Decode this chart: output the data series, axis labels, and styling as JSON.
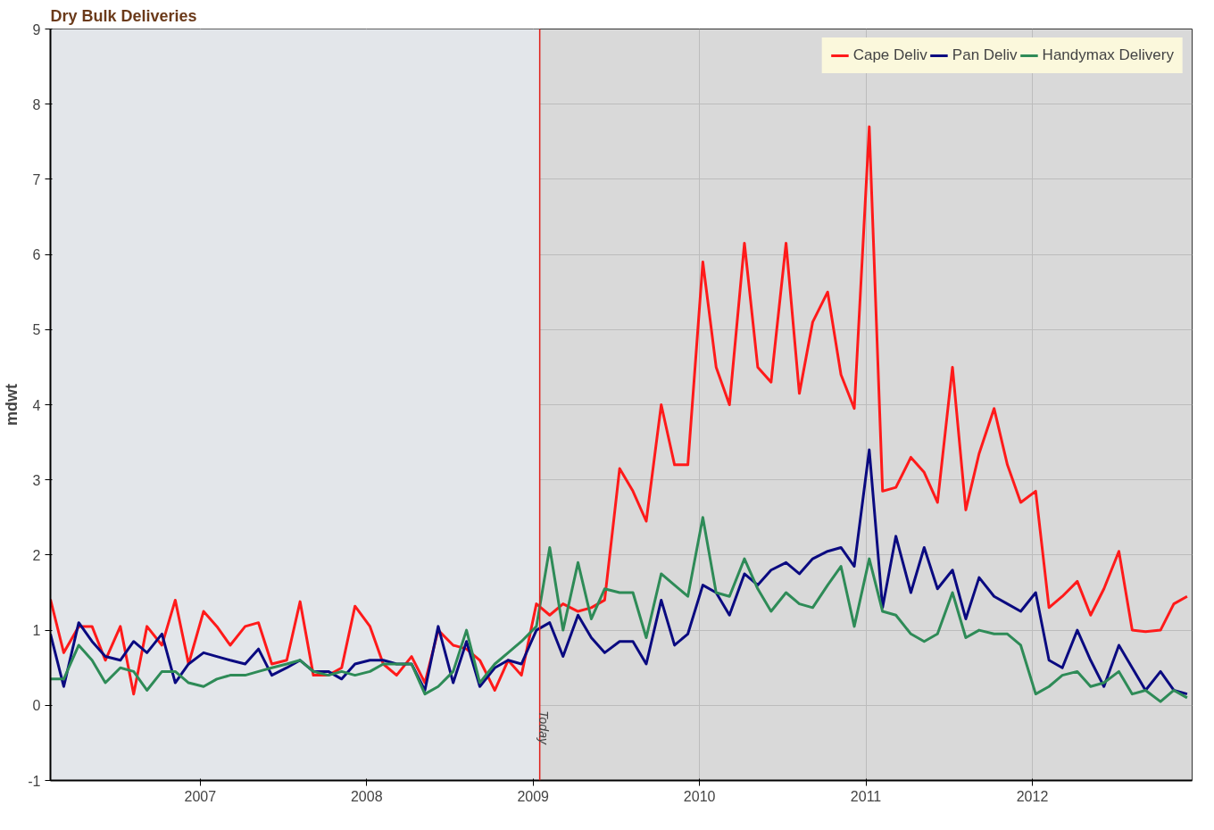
{
  "chart_data": {
    "type": "line",
    "title": "Dry Bulk Deliveries",
    "ylabel": "mdwt",
    "x": [
      2006.1,
      2006.18,
      2006.27,
      2006.35,
      2006.43,
      2006.52,
      2006.6,
      2006.68,
      2006.77,
      2006.85,
      2006.93,
      2007.02,
      2007.1,
      2007.18,
      2007.27,
      2007.35,
      2007.43,
      2007.52,
      2007.6,
      2007.68,
      2007.77,
      2007.85,
      2007.93,
      2008.02,
      2008.1,
      2008.18,
      2008.27,
      2008.35,
      2008.43,
      2008.52,
      2008.6,
      2008.68,
      2008.77,
      2008.85,
      2008.93,
      2009.02,
      2009.1,
      2009.18,
      2009.27,
      2009.35,
      2009.43,
      2009.52,
      2009.6,
      2009.68,
      2009.77,
      2009.85,
      2009.93,
      2010.02,
      2010.1,
      2010.18,
      2010.27,
      2010.35,
      2010.43,
      2010.52,
      2010.6,
      2010.68,
      2010.77,
      2010.85,
      2010.93,
      2011.02,
      2011.1,
      2011.18,
      2011.27,
      2011.35,
      2011.43,
      2011.52,
      2011.6,
      2011.68,
      2011.77,
      2011.85,
      2011.93,
      2012.02,
      2012.1,
      2012.18,
      2012.27,
      2012.35,
      2012.43,
      2012.52,
      2012.6,
      2012.68,
      2012.77,
      2012.85,
      2012.93
    ],
    "series": [
      {
        "name": "Cape Deliv",
        "color": "#ff1a1a",
        "values": [
          1.41,
          0.7,
          1.05,
          1.05,
          0.6,
          1.05,
          0.15,
          1.05,
          0.8,
          1.4,
          0.55,
          1.25,
          1.05,
          0.8,
          1.05,
          1.1,
          0.55,
          0.6,
          1.38,
          0.4,
          0.4,
          0.5,
          1.32,
          1.05,
          0.55,
          0.4,
          0.65,
          0.3,
          1.0,
          0.8,
          0.75,
          0.6,
          0.2,
          0.6,
          0.4,
          1.35,
          1.2,
          1.35,
          1.25,
          1.3,
          1.4,
          3.15,
          2.85,
          2.45,
          4.0,
          3.2,
          3.2,
          5.9,
          4.5,
          4.0,
          6.15,
          4.5,
          4.3,
          6.15,
          4.15,
          5.1,
          5.5,
          4.4,
          3.95,
          7.7,
          2.85,
          2.9,
          3.3,
          3.1,
          2.7,
          4.5,
          2.6,
          3.35,
          3.95,
          3.2,
          2.7,
          2.85,
          1.3,
          1.45,
          1.65,
          1.2,
          1.55,
          2.05,
          1.0,
          0.98,
          1.0,
          1.35,
          1.45
        ]
      },
      {
        "name": "Pan Deliv",
        "color": "#0a0a80",
        "values": [
          0.95,
          0.25,
          1.1,
          0.85,
          0.65,
          0.6,
          0.85,
          0.7,
          0.95,
          0.3,
          0.55,
          0.7,
          0.65,
          0.6,
          0.55,
          0.75,
          0.4,
          0.5,
          0.6,
          0.45,
          0.45,
          0.35,
          0.55,
          0.6,
          0.6,
          0.55,
          0.55,
          0.2,
          1.05,
          0.3,
          0.85,
          0.25,
          0.5,
          0.6,
          0.55,
          1.0,
          1.1,
          0.65,
          1.2,
          0.9,
          0.7,
          0.85,
          0.85,
          0.55,
          1.4,
          0.8,
          0.95,
          1.6,
          1.5,
          1.2,
          1.75,
          1.6,
          1.8,
          1.9,
          1.75,
          1.95,
          2.05,
          2.1,
          1.85,
          3.4,
          1.3,
          2.25,
          1.5,
          2.1,
          1.55,
          1.8,
          1.15,
          1.7,
          1.45,
          1.35,
          1.25,
          1.5,
          0.6,
          0.5,
          1.0,
          0.6,
          0.25,
          0.8,
          0.5,
          0.2,
          0.45,
          0.2,
          0.15
        ]
      },
      {
        "name": "Handymax Delivery",
        "color": "#2e8b57",
        "values": [
          0.35,
          0.35,
          0.8,
          0.6,
          0.3,
          0.5,
          0.45,
          0.2,
          0.45,
          0.45,
          0.3,
          0.25,
          0.35,
          0.4,
          0.4,
          0.45,
          0.5,
          0.55,
          0.6,
          0.45,
          0.4,
          0.45,
          0.4,
          0.45,
          0.55,
          0.55,
          0.55,
          0.15,
          0.25,
          0.45,
          1.0,
          0.3,
          0.55,
          0.7,
          0.85,
          1.05,
          2.1,
          1.0,
          1.9,
          1.15,
          1.55,
          1.5,
          1.5,
          0.9,
          1.75,
          1.6,
          1.45,
          2.5,
          1.5,
          1.45,
          1.95,
          1.55,
          1.25,
          1.5,
          1.35,
          1.3,
          1.6,
          1.85,
          1.05,
          1.95,
          1.25,
          1.2,
          0.95,
          0.85,
          0.95,
          1.5,
          0.9,
          1.0,
          0.95,
          0.95,
          0.8,
          0.15,
          0.25,
          0.4,
          0.45,
          0.25,
          0.3,
          0.45,
          0.15,
          0.2,
          0.05,
          0.2,
          0.1
        ]
      }
    ],
    "xlim": [
      2006.1,
      2012.96
    ],
    "xticks": [
      2007,
      2008,
      2009,
      2010,
      2011,
      2012
    ],
    "ylim": [
      -1,
      9
    ],
    "yticks": [
      -1,
      0,
      1,
      2,
      3,
      4,
      5,
      6,
      7,
      8,
      9
    ],
    "grid": true,
    "legend": "top right",
    "marker": "none",
    "line_style": "solid",
    "ref_lines": [
      {
        "axis": "x",
        "value": 2009.04,
        "label": "Today",
        "color": "#e0201a"
      }
    ],
    "bands": [
      {
        "axis": "x",
        "from": 2006.1,
        "to": 2009.04,
        "color": "#e3e6ea"
      }
    ]
  }
}
